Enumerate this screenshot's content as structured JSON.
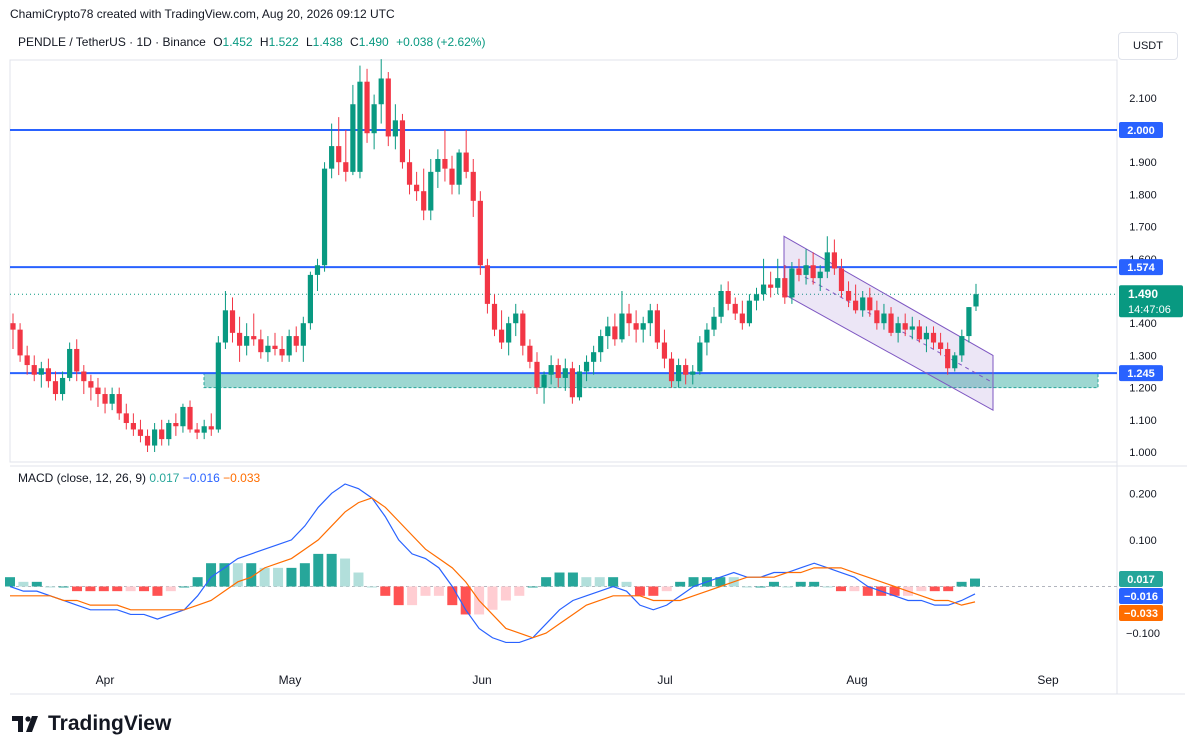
{
  "header": {
    "attribution": "ChamiCrypto78 created with TradingView.com, Aug 20, 2026 09:12 UTC"
  },
  "legend": {
    "symbol": "PENDLE / TetherUS · 1D · Binance",
    "o_label": "O",
    "o": "1.452",
    "h_label": "H",
    "h": "1.522",
    "l_label": "L",
    "l": "1.438",
    "c_label": "C",
    "c": "1.490",
    "change": "+0.038 (+2.62%)"
  },
  "unit_button": "USDT",
  "price_scale": {
    "ticks": [
      "2.100",
      "1.900",
      "1.800",
      "1.700",
      "1.600",
      "1.400",
      "1.300",
      "1.200",
      "1.100",
      "1.000"
    ],
    "tick_values": [
      2.1,
      1.9,
      1.8,
      1.7,
      1.6,
      1.4,
      1.3,
      1.2,
      1.1,
      1.0
    ],
    "levels": [
      {
        "label": "2.000",
        "value": 2.0
      },
      {
        "label": "1.574",
        "value": 1.574
      },
      {
        "label": "1.245",
        "value": 1.245
      }
    ],
    "current_price_label": "1.490",
    "current_price_value": 1.49,
    "countdown": "14:47:06"
  },
  "macd_legend": {
    "title": "MACD (close, 12, 26, 9)",
    "hist": "0.017",
    "macd": "−0.016",
    "signal": "−0.033"
  },
  "macd_scale": {
    "ticks": [
      "0.200",
      "0.100",
      "−0.100"
    ],
    "tick_values": [
      0.2,
      0.1,
      -0.1
    ],
    "labels": [
      {
        "label": "0.017",
        "value": 0.017,
        "color": "#26a69a"
      },
      {
        "label": "−0.016",
        "value": -0.016,
        "color": "#2962ff"
      },
      {
        "label": "−0.033",
        "value": -0.033,
        "color": "#ff6d00"
      }
    ]
  },
  "time_axis": [
    "Apr",
    "May",
    "Jun",
    "Jul",
    "Aug",
    "Sep"
  ],
  "brand": "TradingView",
  "colors": {
    "up": "#089981",
    "down": "#f23645",
    "level": "#2962ff",
    "macd": "#2962ff",
    "signal": "#ff6d00",
    "zone": "#26a69a",
    "channel": "#7e57c2"
  },
  "chart_data": {
    "type": "candlestick",
    "symbol": "PENDLE / TetherUS",
    "interval": "1D",
    "x_range": [
      "Mar 16",
      "Aug 20"
    ],
    "ylim": [
      0.98,
      2.22
    ],
    "candles_ohlc": [
      [
        1.4,
        1.43,
        1.32,
        1.38
      ],
      [
        1.38,
        1.4,
        1.28,
        1.3
      ],
      [
        1.3,
        1.33,
        1.24,
        1.27
      ],
      [
        1.27,
        1.3,
        1.22,
        1.24
      ],
      [
        1.24,
        1.28,
        1.2,
        1.26
      ],
      [
        1.26,
        1.29,
        1.2,
        1.22
      ],
      [
        1.22,
        1.25,
        1.16,
        1.18
      ],
      [
        1.18,
        1.25,
        1.16,
        1.23
      ],
      [
        1.23,
        1.34,
        1.22,
        1.32
      ],
      [
        1.32,
        1.35,
        1.22,
        1.25
      ],
      [
        1.25,
        1.27,
        1.18,
        1.22
      ],
      [
        1.22,
        1.24,
        1.16,
        1.2
      ],
      [
        1.2,
        1.23,
        1.14,
        1.18
      ],
      [
        1.18,
        1.2,
        1.12,
        1.15
      ],
      [
        1.15,
        1.2,
        1.13,
        1.18
      ],
      [
        1.18,
        1.2,
        1.1,
        1.12
      ],
      [
        1.12,
        1.15,
        1.07,
        1.09
      ],
      [
        1.09,
        1.12,
        1.05,
        1.07
      ],
      [
        1.07,
        1.1,
        1.03,
        1.05
      ],
      [
        1.05,
        1.07,
        1.0,
        1.02
      ],
      [
        1.02,
        1.09,
        1.0,
        1.07
      ],
      [
        1.07,
        1.1,
        1.02,
        1.04
      ],
      [
        1.04,
        1.1,
        1.02,
        1.09
      ],
      [
        1.09,
        1.12,
        1.05,
        1.08
      ],
      [
        1.08,
        1.15,
        1.06,
        1.14
      ],
      [
        1.14,
        1.16,
        1.06,
        1.07
      ],
      [
        1.07,
        1.09,
        1.04,
        1.06
      ],
      [
        1.06,
        1.1,
        1.04,
        1.08
      ],
      [
        1.08,
        1.12,
        1.05,
        1.07
      ],
      [
        1.07,
        1.36,
        1.06,
        1.34
      ],
      [
        1.34,
        1.5,
        1.32,
        1.44
      ],
      [
        1.44,
        1.48,
        1.34,
        1.37
      ],
      [
        1.37,
        1.42,
        1.28,
        1.33
      ],
      [
        1.33,
        1.4,
        1.3,
        1.36
      ],
      [
        1.36,
        1.43,
        1.33,
        1.35
      ],
      [
        1.35,
        1.38,
        1.29,
        1.31
      ],
      [
        1.31,
        1.36,
        1.28,
        1.33
      ],
      [
        1.33,
        1.37,
        1.3,
        1.32
      ],
      [
        1.32,
        1.36,
        1.28,
        1.3
      ],
      [
        1.3,
        1.38,
        1.28,
        1.36
      ],
      [
        1.36,
        1.39,
        1.31,
        1.33
      ],
      [
        1.33,
        1.42,
        1.28,
        1.4
      ],
      [
        1.4,
        1.56,
        1.38,
        1.55
      ],
      [
        1.55,
        1.6,
        1.5,
        1.58
      ],
      [
        1.58,
        1.9,
        1.56,
        1.88
      ],
      [
        1.88,
        2.02,
        1.85,
        1.95
      ],
      [
        1.95,
        2.04,
        1.86,
        1.9
      ],
      [
        1.9,
        2.0,
        1.84,
        1.87
      ],
      [
        1.87,
        2.14,
        1.86,
        2.08
      ],
      [
        1.87,
        2.2,
        1.85,
        2.15
      ],
      [
        2.15,
        2.19,
        1.96,
        1.99
      ],
      [
        1.99,
        2.11,
        1.94,
        2.08
      ],
      [
        2.08,
        2.22,
        2.02,
        2.16
      ],
      [
        2.16,
        2.18,
        1.95,
        1.98
      ],
      [
        1.98,
        2.08,
        1.94,
        2.03
      ],
      [
        2.03,
        2.05,
        1.88,
        1.9
      ],
      [
        1.9,
        1.94,
        1.8,
        1.83
      ],
      [
        1.83,
        1.87,
        1.78,
        1.81
      ],
      [
        1.81,
        1.88,
        1.72,
        1.75
      ],
      [
        1.75,
        1.91,
        1.72,
        1.87
      ],
      [
        1.87,
        1.94,
        1.82,
        1.91
      ],
      [
        1.91,
        2.0,
        1.84,
        1.88
      ],
      [
        1.88,
        1.92,
        1.8,
        1.83
      ],
      [
        1.83,
        1.94,
        1.8,
        1.93
      ],
      [
        1.93,
        2.0,
        1.85,
        1.87
      ],
      [
        1.87,
        1.91,
        1.73,
        1.78
      ],
      [
        1.78,
        1.81,
        1.55,
        1.58
      ],
      [
        1.58,
        1.6,
        1.43,
        1.46
      ],
      [
        1.46,
        1.49,
        1.36,
        1.38
      ],
      [
        1.38,
        1.44,
        1.32,
        1.34
      ],
      [
        1.34,
        1.42,
        1.3,
        1.4
      ],
      [
        1.4,
        1.46,
        1.36,
        1.43
      ],
      [
        1.43,
        1.44,
        1.3,
        1.33
      ],
      [
        1.33,
        1.35,
        1.26,
        1.28
      ],
      [
        1.28,
        1.31,
        1.18,
        1.2
      ],
      [
        1.2,
        1.25,
        1.15,
        1.24
      ],
      [
        1.24,
        1.3,
        1.21,
        1.27
      ],
      [
        1.27,
        1.29,
        1.2,
        1.23
      ],
      [
        1.23,
        1.29,
        1.19,
        1.26
      ],
      [
        1.26,
        1.28,
        1.15,
        1.17
      ],
      [
        1.17,
        1.27,
        1.16,
        1.25
      ],
      [
        1.25,
        1.3,
        1.22,
        1.28
      ],
      [
        1.28,
        1.33,
        1.24,
        1.31
      ],
      [
        1.31,
        1.38,
        1.28,
        1.36
      ],
      [
        1.36,
        1.42,
        1.32,
        1.39
      ],
      [
        1.39,
        1.43,
        1.33,
        1.35
      ],
      [
        1.35,
        1.5,
        1.34,
        1.43
      ],
      [
        1.43,
        1.46,
        1.36,
        1.4
      ],
      [
        1.4,
        1.44,
        1.34,
        1.38
      ],
      [
        1.38,
        1.42,
        1.34,
        1.4
      ],
      [
        1.4,
        1.46,
        1.36,
        1.44
      ],
      [
        1.44,
        1.46,
        1.32,
        1.34
      ],
      [
        1.34,
        1.38,
        1.26,
        1.29
      ],
      [
        1.29,
        1.31,
        1.2,
        1.22
      ],
      [
        1.22,
        1.29,
        1.2,
        1.27
      ],
      [
        1.27,
        1.29,
        1.21,
        1.24
      ],
      [
        1.24,
        1.27,
        1.21,
        1.25
      ],
      [
        1.25,
        1.36,
        1.24,
        1.34
      ],
      [
        1.34,
        1.4,
        1.3,
        1.38
      ],
      [
        1.38,
        1.45,
        1.36,
        1.42
      ],
      [
        1.42,
        1.52,
        1.4,
        1.5
      ],
      [
        1.5,
        1.53,
        1.44,
        1.46
      ],
      [
        1.46,
        1.48,
        1.41,
        1.43
      ],
      [
        1.43,
        1.47,
        1.38,
        1.4
      ],
      [
        1.4,
        1.49,
        1.39,
        1.47
      ],
      [
        1.47,
        1.51,
        1.44,
        1.49
      ],
      [
        1.49,
        1.6,
        1.47,
        1.52
      ],
      [
        1.52,
        1.56,
        1.48,
        1.51
      ],
      [
        1.51,
        1.6,
        1.49,
        1.54
      ],
      [
        1.54,
        1.58,
        1.46,
        1.48
      ],
      [
        1.48,
        1.59,
        1.46,
        1.57
      ],
      [
        1.57,
        1.6,
        1.53,
        1.55
      ],
      [
        1.55,
        1.63,
        1.52,
        1.58
      ],
      [
        1.58,
        1.62,
        1.52,
        1.54
      ],
      [
        1.54,
        1.58,
        1.5,
        1.56
      ],
      [
        1.56,
        1.67,
        1.54,
        1.62
      ],
      [
        1.62,
        1.66,
        1.55,
        1.57
      ],
      [
        1.57,
        1.6,
        1.48,
        1.5
      ],
      [
        1.5,
        1.53,
        1.45,
        1.47
      ],
      [
        1.47,
        1.52,
        1.43,
        1.44
      ],
      [
        1.44,
        1.5,
        1.42,
        1.48
      ],
      [
        1.48,
        1.51,
        1.42,
        1.44
      ],
      [
        1.44,
        1.47,
        1.38,
        1.4
      ],
      [
        1.4,
        1.46,
        1.38,
        1.43
      ],
      [
        1.43,
        1.45,
        1.36,
        1.37
      ],
      [
        1.37,
        1.42,
        1.34,
        1.4
      ],
      [
        1.4,
        1.43,
        1.36,
        1.38
      ],
      [
        1.38,
        1.42,
        1.35,
        1.39
      ],
      [
        1.39,
        1.41,
        1.34,
        1.35
      ],
      [
        1.35,
        1.39,
        1.31,
        1.37
      ],
      [
        1.37,
        1.39,
        1.32,
        1.34
      ],
      [
        1.34,
        1.37,
        1.3,
        1.32
      ],
      [
        1.32,
        1.34,
        1.24,
        1.26
      ],
      [
        1.26,
        1.31,
        1.25,
        1.3
      ],
      [
        1.3,
        1.38,
        1.28,
        1.36
      ],
      [
        1.36,
        1.45,
        1.34,
        1.45
      ],
      [
        1.452,
        1.522,
        1.438,
        1.49
      ]
    ],
    "price_levels": [
      2.0,
      1.574,
      1.245
    ],
    "support_zone": [
      1.2,
      1.245
    ],
    "channel": {
      "upper": [
        [
          1.62,
          1.67
        ],
        [
          1.3,
          1.31
        ]
      ],
      "lower": [
        [
          1.49,
          1.52
        ],
        [
          1.13,
          1.14
        ]
      ]
    },
    "macd": {
      "params": "close, 12, 26, 9",
      "macd": [
        0.0,
        -0.01,
        -0.01,
        -0.02,
        -0.03,
        -0.04,
        -0.05,
        -0.05,
        -0.05,
        -0.06,
        -0.06,
        -0.07,
        -0.06,
        -0.05,
        -0.02,
        0.02,
        0.04,
        0.06,
        0.07,
        0.08,
        0.09,
        0.1,
        0.13,
        0.17,
        0.2,
        0.22,
        0.21,
        0.19,
        0.15,
        0.1,
        0.07,
        0.06,
        0.04,
        0.0,
        -0.05,
        -0.09,
        -0.11,
        -0.12,
        -0.12,
        -0.11,
        -0.08,
        -0.05,
        -0.03,
        -0.02,
        -0.01,
        0.0,
        -0.01,
        -0.04,
        -0.05,
        -0.04,
        -0.02,
        0.0,
        0.01,
        0.02,
        0.03,
        0.02,
        0.02,
        0.03,
        0.03,
        0.04,
        0.05,
        0.04,
        0.03,
        0.02,
        0.0,
        -0.01,
        -0.02,
        -0.03,
        -0.03,
        -0.04,
        -0.04,
        -0.03,
        -0.016
      ],
      "signal": [
        -0.02,
        -0.02,
        -0.02,
        -0.02,
        -0.03,
        -0.03,
        -0.04,
        -0.04,
        -0.04,
        -0.05,
        -0.05,
        -0.05,
        -0.05,
        -0.05,
        -0.04,
        -0.03,
        -0.01,
        0.01,
        0.02,
        0.04,
        0.05,
        0.06,
        0.08,
        0.1,
        0.13,
        0.16,
        0.18,
        0.19,
        0.17,
        0.14,
        0.11,
        0.08,
        0.06,
        0.04,
        0.01,
        -0.03,
        -0.06,
        -0.09,
        -0.1,
        -0.11,
        -0.1,
        -0.08,
        -0.06,
        -0.04,
        -0.03,
        -0.02,
        -0.02,
        -0.02,
        -0.03,
        -0.03,
        -0.03,
        -0.02,
        -0.01,
        0.0,
        0.01,
        0.02,
        0.02,
        0.02,
        0.03,
        0.03,
        0.04,
        0.04,
        0.04,
        0.03,
        0.02,
        0.01,
        0.0,
        -0.01,
        -0.02,
        -0.03,
        -0.03,
        -0.04,
        -0.033
      ],
      "histogram_last": 0.017
    }
  }
}
